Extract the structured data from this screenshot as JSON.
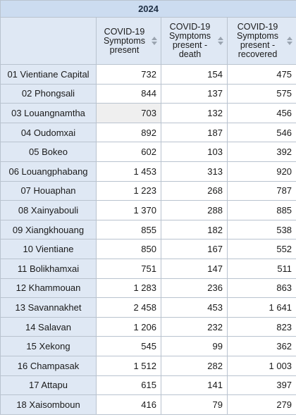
{
  "table": {
    "year": "2024",
    "columns": [
      {
        "line1": "COVID-19",
        "line2": "Symptoms",
        "line3": "present",
        "line4": ""
      },
      {
        "line1": "COVID-19",
        "line2": "Symptoms",
        "line3": "present -",
        "line4": "death"
      },
      {
        "line1": "COVID-19",
        "line2": "Symptoms",
        "line3": "present -",
        "line4": "recovered"
      }
    ],
    "rows": [
      {
        "label": "01 Vientiane Capital",
        "present": "732",
        "death": "154",
        "recovered": "475"
      },
      {
        "label": "02 Phongsali",
        "present": "844",
        "death": "137",
        "recovered": "575"
      },
      {
        "label": "03 Louangnamtha",
        "present": "703",
        "death": "132",
        "recovered": "456"
      },
      {
        "label": "04 Oudomxai",
        "present": "892",
        "death": "187",
        "recovered": "546"
      },
      {
        "label": "05 Bokeo",
        "present": "602",
        "death": "103",
        "recovered": "392"
      },
      {
        "label": "06 Louangphabang",
        "present": "1 453",
        "death": "313",
        "recovered": "920"
      },
      {
        "label": "07 Houaphan",
        "present": "1 223",
        "death": "268",
        "recovered": "787"
      },
      {
        "label": "08 Xainyabouli",
        "present": "1 370",
        "death": "288",
        "recovered": "885"
      },
      {
        "label": "09 Xiangkhouang",
        "present": "855",
        "death": "182",
        "recovered": "538"
      },
      {
        "label": "10 Vientiane",
        "present": "850",
        "death": "167",
        "recovered": "552"
      },
      {
        "label": "11 Bolikhamxai",
        "present": "751",
        "death": "147",
        "recovered": "511"
      },
      {
        "label": "12 Khammouan",
        "present": "1 283",
        "death": "236",
        "recovered": "863"
      },
      {
        "label": "13 Savannakhet",
        "present": "2 458",
        "death": "453",
        "recovered": "1 641"
      },
      {
        "label": "14 Salavan",
        "present": "1 206",
        "death": "232",
        "recovered": "823"
      },
      {
        "label": "15 Xekong",
        "present": "545",
        "death": "99",
        "recovered": "362"
      },
      {
        "label": "16 Champasak",
        "present": "1 512",
        "death": "282",
        "recovered": "1 003"
      },
      {
        "label": "17 Attapu",
        "present": "615",
        "death": "141",
        "recovered": "397"
      },
      {
        "label": "18 Xaisomboun",
        "present": "416",
        "death": "79",
        "recovered": "279"
      }
    ]
  },
  "colors": {
    "header_bg": "#dfe8f4",
    "year_bg": "#ccdcf0",
    "border": "#b9c3cf",
    "highlight_cell": "#efefef"
  },
  "icons": {
    "sort": "sort-arrows-icon"
  }
}
